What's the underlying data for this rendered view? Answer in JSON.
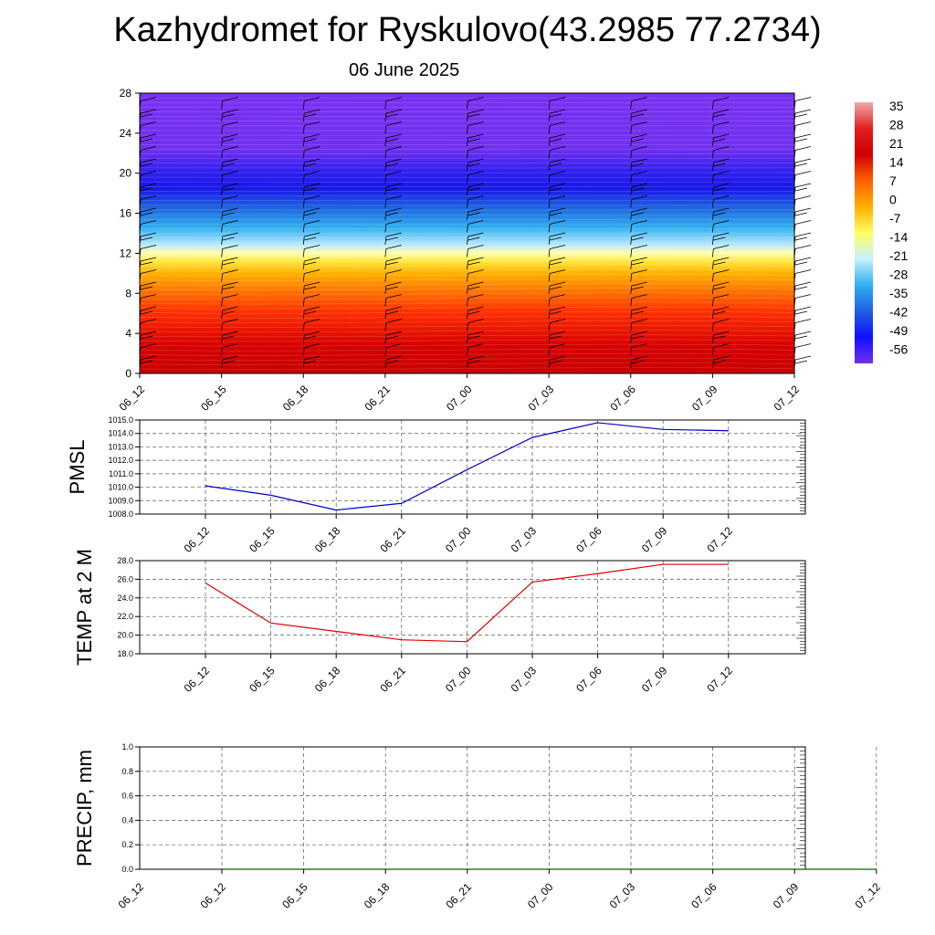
{
  "header": {
    "title": "Kazhydromet for Ryskulovo(43.2985 77.2734)",
    "date": "06 June 2025"
  },
  "chart_data": [
    {
      "type": "heatmap",
      "title": "",
      "ylim": [
        0,
        28
      ],
      "yticks": [
        "0",
        "4",
        "8",
        "12",
        "16",
        "20",
        "24",
        "28"
      ],
      "xticks": [
        "06_12",
        "06_15",
        "06_18",
        "06_21",
        "07_00",
        "07_03",
        "07_06",
        "07_09",
        "07_12"
      ],
      "colorbar_labels": [
        "35",
        "28",
        "21",
        "14",
        "7",
        "0",
        "-7",
        "-14",
        "-21",
        "-28",
        "-35",
        "-42",
        "-49",
        "-56"
      ],
      "colorscale": [
        "#f0a8a8",
        "#e02020",
        "#d00000",
        "#ff6000",
        "#ffb000",
        "#ffff60",
        "#c8f0ff",
        "#30b0f0",
        "#2060e0",
        "#1010ff",
        "#7030f0"
      ],
      "overlay": "wind barbs"
    },
    {
      "type": "line",
      "ylabel": "PMSL",
      "ylim": [
        1008.0,
        1015.0
      ],
      "yticks": [
        "1008.0",
        "1009.0",
        "1010.0",
        "1011.0",
        "1012.0",
        "1013.0",
        "1014.0",
        "1015.0"
      ],
      "categories": [
        "06_12",
        "06_15",
        "06_18",
        "06_21",
        "07_00",
        "07_03",
        "07_06",
        "07_09",
        "07_12"
      ],
      "values": [
        1010.1,
        1009.4,
        1008.3,
        1008.8,
        1011.3,
        1013.7,
        1014.8,
        1014.3,
        1014.2
      ],
      "color": "#0000c8",
      "grid": true
    },
    {
      "type": "line",
      "ylabel": "TEMP at 2 M",
      "ylim": [
        18.0,
        28.0
      ],
      "yticks": [
        "18.0",
        "20.0",
        "22.0",
        "24.0",
        "26.0",
        "28.0"
      ],
      "categories": [
        "06_12",
        "06_15",
        "06_18",
        "06_21",
        "07_00",
        "07_03",
        "07_06",
        "07_09",
        "07_12"
      ],
      "values": [
        25.6,
        21.3,
        20.4,
        19.5,
        19.3,
        25.7,
        26.6,
        27.6,
        27.6
      ],
      "color": "#e00000",
      "grid": true
    },
    {
      "type": "line",
      "ylabel": "PRECIP, mm",
      "ylim": [
        0.0,
        1.0
      ],
      "yticks": [
        "0.0",
        "0.2",
        "0.4",
        "0.6",
        "0.8",
        "1.0"
      ],
      "categories": [
        "06_12",
        "06_15",
        "06_18",
        "06_21",
        "07_00",
        "07_03",
        "07_06",
        "07_09",
        "07_12"
      ],
      "values": [
        0,
        0,
        0,
        0,
        0,
        0,
        0,
        0,
        0
      ],
      "color": "#006400",
      "grid": true
    }
  ]
}
